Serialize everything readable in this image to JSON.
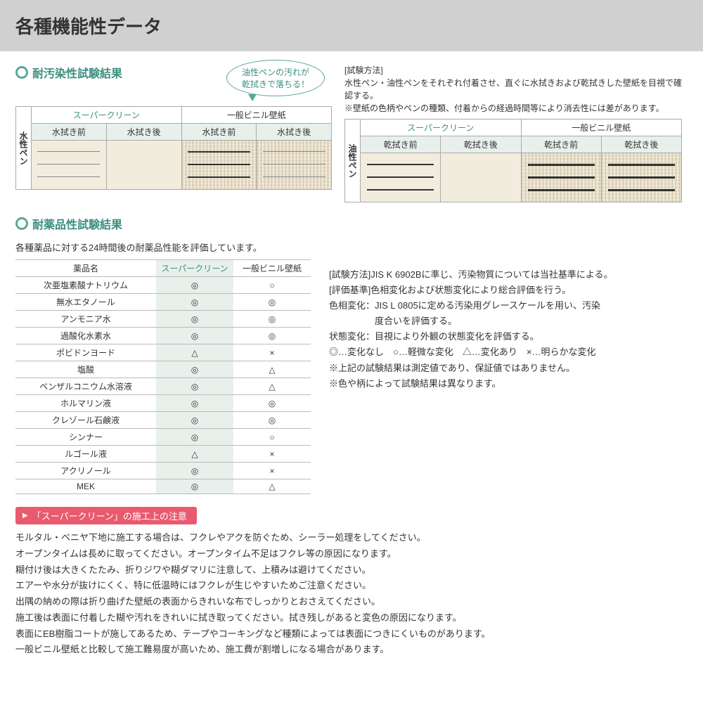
{
  "title": "各種機能性データ",
  "colors": {
    "accent": "#5aa995",
    "accent_text": "#3b8f80",
    "tag": "#e95a6e",
    "tint": "#e8f0ec",
    "header_bg": "#d0d0d0"
  },
  "stain": {
    "heading": "耐汚染性試験結果",
    "speech": "油性ペンの汚れが\n乾拭きで落ちる！",
    "method_label": "[試験方法]",
    "method_text1": "水性ペン・油性ペンをそれぞれ付着させ、直ぐに水拭きおよび乾拭きした壁紙を目視で確認する。",
    "method_text2": "※壁紙の色柄やペンの種類、付着からの経過時間等により消去性には差があります。",
    "groups": {
      "sc": "スーパークリーン",
      "gen": "一般ビニル壁紙"
    },
    "subs_water": {
      "before": "水拭き前",
      "after": "水拭き後"
    },
    "subs_dry": {
      "before": "乾拭き前",
      "after": "乾拭き後"
    },
    "side_water": "水性ペン",
    "side_oil": "油性ペン"
  },
  "chem": {
    "heading": "耐薬品性試験結果",
    "desc": "各種薬品に対する24時間後の耐薬品性能を評価しています。",
    "headers": {
      "name": "薬品名",
      "sc": "スーパークリーン",
      "gen": "一般ビニル壁紙"
    },
    "rows": [
      {
        "name": "次亜塩素酸ナトリウム",
        "sc": "◎",
        "gen": "○"
      },
      {
        "name": "無水エタノール",
        "sc": "◎",
        "gen": "◎"
      },
      {
        "name": "アンモニア水",
        "sc": "◎",
        "gen": "◎"
      },
      {
        "name": "過酸化水素水",
        "sc": "◎",
        "gen": "◎"
      },
      {
        "name": "ポビドンヨード",
        "sc": "△",
        "gen": "×"
      },
      {
        "name": "塩酸",
        "sc": "◎",
        "gen": "△"
      },
      {
        "name": "ベンザルコニウム水溶液",
        "sc": "◎",
        "gen": "△"
      },
      {
        "name": "ホルマリン液",
        "sc": "◎",
        "gen": "◎"
      },
      {
        "name": "クレゾール石鹸液",
        "sc": "◎",
        "gen": "◎"
      },
      {
        "name": "シンナー",
        "sc": "◎",
        "gen": "○"
      },
      {
        "name": "ルゴール液",
        "sc": "△",
        "gen": "×"
      },
      {
        "name": "アクリノール",
        "sc": "◎",
        "gen": "×"
      },
      {
        "name": "MEK",
        "sc": "◎",
        "gen": "△"
      }
    ],
    "method_line": "[試験方法]JIS K 6902Bに準じ、汚染物質については当社基準による。",
    "eval_line": "[評価基準]色相変化および状態変化により総合評価を行う。",
    "hue_line1": "色相変化：JIS L 0805に定める汚染用グレースケールを用い、汚染",
    "hue_line2": "　　　　　度合いを評価する。",
    "state_line": "状態変化：目視により外観の状態変化を評価する。",
    "legend": "◎…変化なし　○…軽微な変化　△…変化あり　×…明らかな変化",
    "note1": "※上記の試験結果は測定値であり、保証値ではありません。",
    "note2": "※色や柄によって試験結果は異なります。"
  },
  "notice": {
    "tag": "「スーパークリーン」の施工上の注意",
    "lines": [
      "モルタル・ベニヤ下地に施工する場合は、フクレやアクを防ぐため、シーラー処理をしてください。",
      "オープンタイムは長めに取ってください。オープンタイム不足はフクレ等の原因になります。",
      "糊付け後は大きくたたみ、折りジワや糊ダマリに注意して、上積みは避けてください。",
      "エアーや水分が抜けにくく、特に低温時にはフクレが生じやすいためご注意ください。",
      "出隅の納めの際は折り曲げた壁紙の表面からきれいな布でしっかりとおさえてください。",
      "施工後は表面に付着した糊や汚れをきれいに拭き取ってください。拭き残しがあると変色の原因になります。",
      "表面にEB樹脂コートが施してあるため、テープやコーキングなど種類によっては表面につきにくいものがあります。",
      "一般ビニル壁紙と比較して施工難易度が高いため、施工費が割増しになる場合があります。"
    ]
  }
}
